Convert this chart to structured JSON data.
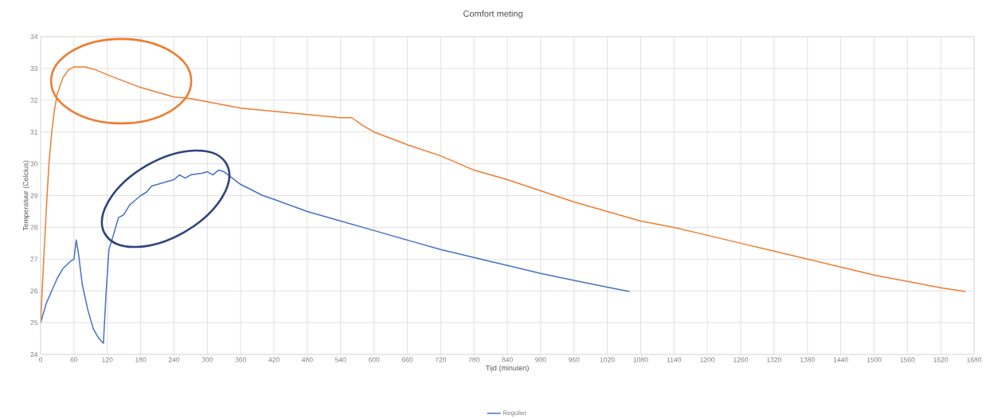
{
  "chart_data": {
    "type": "line",
    "title": "Comfort meting",
    "xlabel": "Tijd (minuten)",
    "ylabel": "Temperatuur (Celcius)",
    "xlim": [
      0,
      1680
    ],
    "xticks": [
      0,
      60,
      120,
      180,
      240,
      300,
      360,
      420,
      480,
      540,
      600,
      660,
      720,
      780,
      840,
      900,
      960,
      1020,
      1080,
      1140,
      1200,
      1260,
      1320,
      1380,
      1440,
      1500,
      1560,
      1620,
      1680
    ],
    "ylim": [
      24,
      34
    ],
    "yticks": [
      24,
      25,
      26,
      27,
      28,
      29,
      30,
      31,
      32,
      33,
      34
    ],
    "grid": true,
    "legend": "bottom",
    "marker": "none",
    "line_style": "solid",
    "series": [
      {
        "name": "Regulier",
        "color": "#4472c4",
        "x": [
          0,
          10,
          20,
          30,
          40,
          55,
          60,
          64,
          68,
          75,
          85,
          95,
          105,
          113,
          118,
          123,
          130,
          140,
          150,
          160,
          170,
          180,
          190,
          200,
          210,
          220,
          240,
          250,
          260,
          270,
          290,
          300,
          310,
          320,
          330,
          345,
          360,
          400,
          420,
          480,
          540,
          600,
          660,
          720,
          780,
          840,
          900,
          960,
          1020,
          1060
        ],
        "values": [
          25,
          25.6,
          26.0,
          26.4,
          26.7,
          26.95,
          27.0,
          27.6,
          27.2,
          26.2,
          25.4,
          24.8,
          24.5,
          24.35,
          26.0,
          27.3,
          27.7,
          28.3,
          28.4,
          28.7,
          28.85,
          29.0,
          29.1,
          29.3,
          29.35,
          29.4,
          29.5,
          29.65,
          29.55,
          29.65,
          29.7,
          29.75,
          29.65,
          29.8,
          29.75,
          29.55,
          29.35,
          29.0,
          28.88,
          28.5,
          28.2,
          27.9,
          27.6,
          27.3,
          27.05,
          26.8,
          26.55,
          26.33,
          26.12,
          25.98
        ]
      },
      {
        "color": "#ed7d31",
        "x": [
          0,
          5,
          10,
          15,
          20,
          25,
          30,
          40,
          50,
          60,
          80,
          100,
          120,
          150,
          180,
          210,
          240,
          270,
          300,
          360,
          420,
          480,
          540,
          560,
          580,
          600,
          660,
          720,
          780,
          840,
          900,
          960,
          1020,
          1080,
          1140,
          1200,
          1260,
          1320,
          1380,
          1440,
          1500,
          1560,
          1620,
          1665
        ],
        "values": [
          25,
          26.8,
          28.5,
          30.0,
          31.0,
          31.7,
          32.2,
          32.7,
          32.95,
          33.05,
          33.05,
          32.95,
          32.8,
          32.6,
          32.4,
          32.25,
          32.1,
          32.05,
          31.95,
          31.75,
          31.65,
          31.55,
          31.45,
          31.45,
          31.2,
          31.0,
          30.6,
          30.25,
          29.8,
          29.5,
          29.15,
          28.8,
          28.5,
          28.2,
          28.0,
          27.75,
          27.5,
          27.25,
          27.0,
          26.75,
          26.5,
          26.3,
          26.1,
          25.98
        ]
      }
    ]
  }
}
